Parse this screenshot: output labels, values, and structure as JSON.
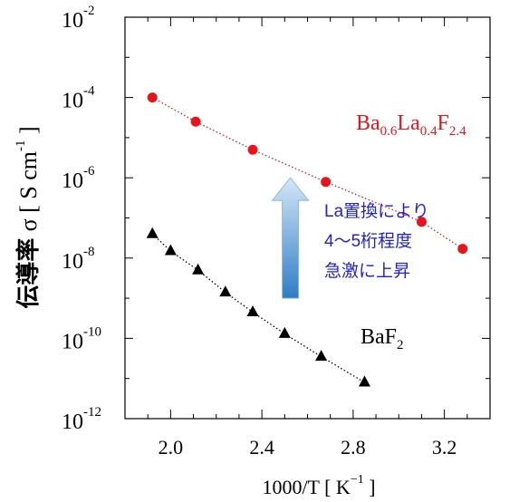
{
  "chart_data": {
    "type": "scatter",
    "xlabel": "1000/T",
    "xlabel_unit": "K",
    "xlabel_unit_exp": "−1",
    "ylabel": "伝導率",
    "ylabel_symbol": "σ",
    "ylabel_unit": "S cm",
    "ylabel_unit_exp": "-1",
    "xlim": [
      1.8,
      3.4
    ],
    "x_ticks": [
      2.0,
      2.4,
      2.8,
      3.2
    ],
    "x_tick_labels": [
      "2.0",
      "2.4",
      "2.8",
      "3.2"
    ],
    "y_log": true,
    "ylim": [
      1e-12,
      0.01
    ],
    "y_ticks": [
      {
        "base": "10",
        "exp": "-2",
        "value": 0.01
      },
      {
        "base": "10",
        "exp": "-4",
        "value": 0.0001
      },
      {
        "base": "10",
        "exp": "-6",
        "value": 1e-06
      },
      {
        "base": "10",
        "exp": "-8",
        "value": 1e-08
      },
      {
        "base": "10",
        "exp": "-10",
        "value": 1e-10
      },
      {
        "base": "10",
        "exp": "-12",
        "value": 1e-12
      }
    ],
    "grid": false,
    "series": [
      {
        "name_parts": [
          {
            "text": "Ba",
            "sub": false
          },
          {
            "text": "0.6",
            "sub": true
          },
          {
            "text": "La",
            "sub": false
          },
          {
            "text": "0.4",
            "sub": true
          },
          {
            "text": "F",
            "sub": false
          },
          {
            "text": "2.4",
            "sub": true
          }
        ],
        "marker": "circle",
        "color": "#e8141b",
        "line": "dotted",
        "points": [
          {
            "x": 1.92,
            "y": 0.0001
          },
          {
            "x": 2.11,
            "y": 2.5e-05
          },
          {
            "x": 2.36,
            "y": 5e-06
          },
          {
            "x": 2.68,
            "y": 7.9e-07
          },
          {
            "x": 3.1,
            "y": 8e-08
          },
          {
            "x": 3.28,
            "y": 1.7e-08
          }
        ]
      },
      {
        "name_parts": [
          {
            "text": "BaF",
            "sub": false
          },
          {
            "text": "2",
            "sub": true
          }
        ],
        "marker": "triangle",
        "color": "#000000",
        "line": "dotted",
        "points": [
          {
            "x": 1.92,
            "y": 4e-08
          },
          {
            "x": 2.0,
            "y": 1.5e-08
          },
          {
            "x": 2.12,
            "y": 5e-09
          },
          {
            "x": 2.24,
            "y": 1.4e-09
          },
          {
            "x": 2.36,
            "y": 4.5e-10
          },
          {
            "x": 2.5,
            "y": 1.3e-10
          },
          {
            "x": 2.66,
            "y": 3.5e-11
          },
          {
            "x": 2.85,
            "y": 8e-12
          }
        ]
      }
    ],
    "annotation": {
      "lines": [
        "La置換により",
        "4〜5桁程度",
        "急激に上昇"
      ],
      "color": "#2222cc",
      "arrow_from_y": 1e-09,
      "arrow_to_y": 1e-06,
      "arrow_x": 2.525
    }
  }
}
